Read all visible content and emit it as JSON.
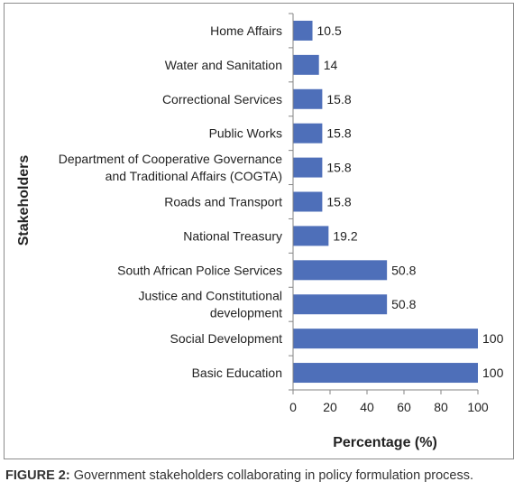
{
  "chart_data": {
    "type": "bar",
    "orientation": "horizontal",
    "categories": [
      "Home Affairs",
      "Water and Sanitation",
      "Correctional Services",
      "Public Works",
      "Department of Cooperative Governance and Traditional Affairs (COGTA)",
      "Roads and Transport",
      "National Treasury",
      "South African Police Services",
      "Justice and Constitutional development",
      "Social Development",
      "Basic Education"
    ],
    "category_lines": [
      [
        "Home Affairs"
      ],
      [
        "Water and Sanitation"
      ],
      [
        "Correctional Services"
      ],
      [
        "Public Works"
      ],
      [
        "Department of Cooperative Governance",
        "and Traditional Affairs (COGTA)"
      ],
      [
        "Roads and Transport"
      ],
      [
        "National Treasury"
      ],
      [
        "South African Police Services"
      ],
      [
        "Justice and Constitutional",
        "development"
      ],
      [
        "Social Development"
      ],
      [
        "Basic Education"
      ]
    ],
    "values": [
      10.5,
      14,
      15.8,
      15.8,
      15.8,
      15.8,
      19.2,
      50.8,
      50.8,
      100,
      100
    ],
    "value_labels": [
      "10.5",
      "14",
      "15.8",
      "15.8",
      "15.8",
      "15.8",
      "19.2",
      "50.8",
      "50.8",
      "100",
      "100"
    ],
    "xlabel": "Percentage (%)",
    "ylabel": "Stakeholders",
    "xlim": [
      0,
      100
    ],
    "xticks": [
      0,
      20,
      40,
      60,
      80,
      100
    ],
    "grid": false,
    "bar_color": "#4e6fb9"
  },
  "caption": {
    "label": "FIGURE 2:",
    "text": " Government stakeholders collaborating in policy formulation process."
  }
}
